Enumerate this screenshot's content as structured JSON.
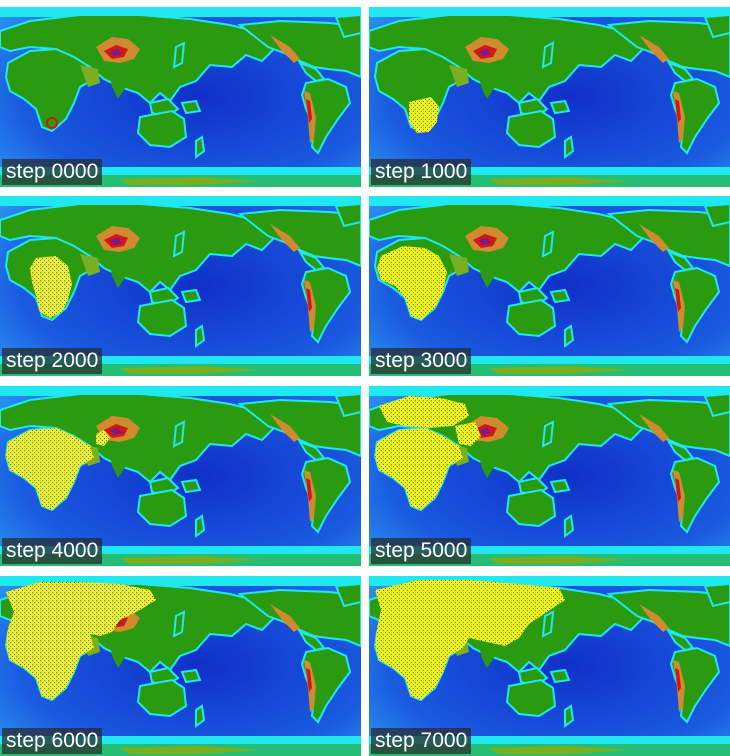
{
  "panels": [
    {
      "label": "step 0000"
    },
    {
      "label": "step 1000"
    },
    {
      "label": "step 2000"
    },
    {
      "label": "step 3000"
    },
    {
      "label": "step 4000"
    },
    {
      "label": "step 5000"
    },
    {
      "label": "step 6000"
    },
    {
      "label": "step 7000"
    }
  ],
  "colors": {
    "deep_ocean": "#1030c8",
    "mid_ocean": "#1a5ae0",
    "shallow_ocean": "#2aa0f0",
    "shelf": "#20e8f0",
    "lowland": "#2a9a10",
    "upland": "#7ab020",
    "highland": "#d08a30",
    "peak": "#d01818",
    "summit": "#7a1890",
    "spread": "#f4f020",
    "outbreak_marker": "#d01818"
  }
}
